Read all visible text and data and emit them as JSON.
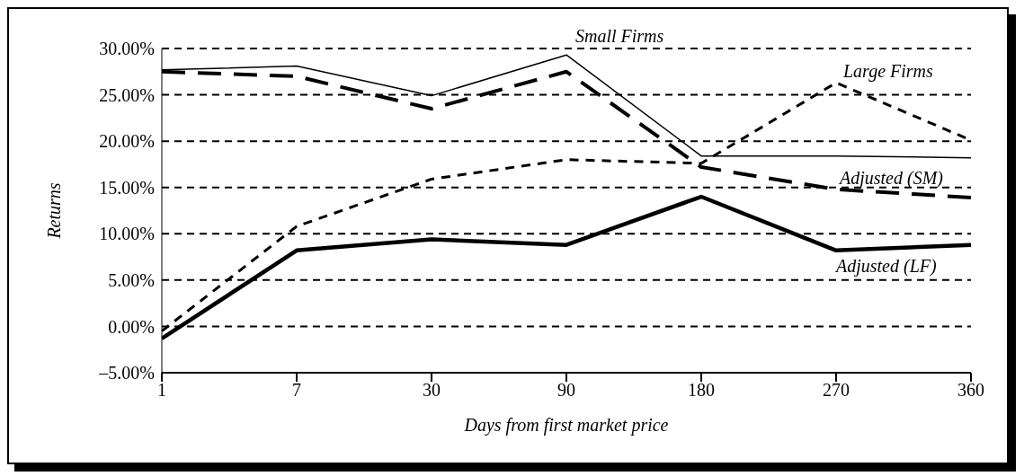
{
  "chart_data": {
    "type": "line",
    "xlabel": "Days from first market price",
    "ylabel": "Returns",
    "categories": [
      "1",
      "7",
      "30",
      "90",
      "180",
      "270",
      "360"
    ],
    "ylim": [
      -5,
      30
    ],
    "yticks": [
      {
        "value": -5,
        "label": "–5.00%"
      },
      {
        "value": 0,
        "label": "0.00%"
      },
      {
        "value": 5,
        "label": "5.00%"
      },
      {
        "value": 10,
        "label": "10.00%"
      },
      {
        "value": 15,
        "label": "15.00%"
      },
      {
        "value": 20,
        "label": "20.00%"
      },
      {
        "value": 25,
        "label": "25.00%"
      },
      {
        "value": 30,
        "label": "30.00%"
      }
    ],
    "grid": "y",
    "marker": "none",
    "series": [
      {
        "name": "Small Firms",
        "color": "#000000",
        "line_style": "solid",
        "values": [
          27.7,
          28.1,
          24.9,
          29.3,
          18.4,
          18.4,
          18.2
        ]
      },
      {
        "name": "Large Firms",
        "color": "#000000",
        "line_style": "dashed",
        "values": [
          -0.5,
          10.8,
          15.9,
          18.0,
          17.6,
          26.3,
          20.1
        ]
      },
      {
        "name": "Adjusted (SM)",
        "color": "#000000",
        "line_style": "dashed",
        "values": [
          27.5,
          27.0,
          23.5,
          27.5,
          17.2,
          14.8,
          13.9
        ]
      },
      {
        "name": "Adjusted (LF)",
        "color": "#000000",
        "line_style": "solid",
        "values": [
          -1.3,
          8.2,
          9.4,
          8.8,
          14.0,
          8.2,
          8.8
        ]
      }
    ]
  }
}
